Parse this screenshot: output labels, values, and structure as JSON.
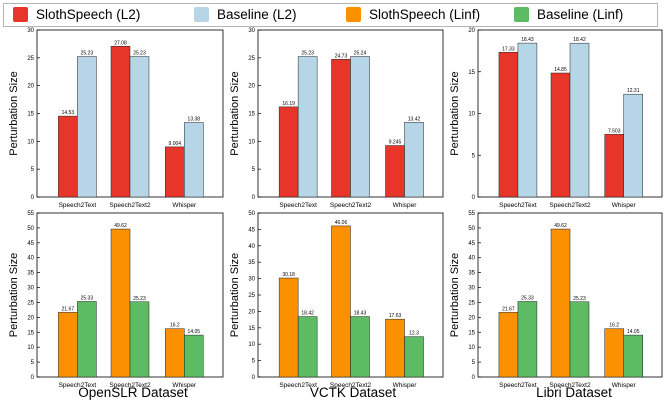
{
  "legend": [
    {
      "label": "SlothSpeech (L2)",
      "color": "#e8352a"
    },
    {
      "label": "Baseline (L2)",
      "color": "#b6d6e8"
    },
    {
      "label": "SlothSpeech (Linf)",
      "color": "#fb9100"
    },
    {
      "label": "Baseline (Linf)",
      "color": "#5dbb63"
    }
  ],
  "datasets": [
    "OpenSLR Dataset",
    "VCTK Dataset",
    "Libri Dataset"
  ],
  "chart_data": [
    {
      "type": "bar",
      "dataset": "OpenSLR Dataset",
      "norm": "L2",
      "ylabel": "Perturbation Size",
      "categories": [
        "Speech2Text",
        "Speech2Text2",
        "Whisper"
      ],
      "ylim": [
        0,
        30
      ],
      "yticks": [
        "0",
        "5",
        "10",
        "15",
        "20",
        "25",
        "30"
      ],
      "series": [
        {
          "name": "SlothSpeech (L2)",
          "values": [
            14.53,
            27.08,
            9.004
          ],
          "labels": [
            "14.53",
            "27.08",
            "9.004"
          ],
          "color": "#e8352a"
        },
        {
          "name": "Baseline (L2)",
          "values": [
            25.23,
            25.23,
            13.38
          ],
          "labels": [
            "25.23",
            "25.23",
            "13.38"
          ],
          "color": "#b6d6e8"
        }
      ]
    },
    {
      "type": "bar",
      "dataset": "VCTK Dataset",
      "norm": "L2",
      "ylabel": "Perturbation Size",
      "categories": [
        "Speech2Text",
        "Speech2Text2",
        "Whisper"
      ],
      "ylim": [
        0,
        30
      ],
      "yticks": [
        "0",
        "5",
        "10",
        "15",
        "20",
        "25",
        "30"
      ],
      "series": [
        {
          "name": "SlothSpeech (L2)",
          "values": [
            16.19,
            24.73,
            9.245
          ],
          "labels": [
            "16.19",
            "24.73",
            "9.245"
          ],
          "color": "#e8352a"
        },
        {
          "name": "Baseline (L2)",
          "values": [
            25.23,
            25.24,
            13.42
          ],
          "labels": [
            "25.23",
            "25.24",
            "13.42"
          ],
          "color": "#b6d6e8"
        }
      ]
    },
    {
      "type": "bar",
      "dataset": "Libri Dataset",
      "norm": "L2",
      "ylabel": "Perturbation Size",
      "categories": [
        "Speech2Text",
        "Speech2Text2",
        "Whisper"
      ],
      "ylim": [
        0,
        20
      ],
      "yticks": [
        "0",
        "5",
        "10",
        "15",
        "20"
      ],
      "series": [
        {
          "name": "SlothSpeech (L2)",
          "values": [
            17.33,
            14.85,
            7.503
          ],
          "labels": [
            "17.33",
            "14.85",
            "7.503"
          ],
          "color": "#e8352a"
        },
        {
          "name": "Baseline (L2)",
          "values": [
            18.43,
            18.42,
            12.31
          ],
          "labels": [
            "18.43",
            "18.42",
            "12.31"
          ],
          "color": "#b6d6e8"
        }
      ]
    },
    {
      "type": "bar",
      "dataset": "OpenSLR Dataset",
      "norm": "Linf",
      "ylabel": "Perturbation Size",
      "categories": [
        "Speech2Text",
        "Speech2Text2",
        "Whisper"
      ],
      "ylim": [
        0,
        55
      ],
      "yticks": [
        "0",
        "5",
        "10",
        "15",
        "20",
        "25",
        "30",
        "35",
        "40",
        "45",
        "50",
        "55"
      ],
      "series": [
        {
          "name": "SlothSpeech (Linf)",
          "values": [
            21.67,
            49.62,
            16.2
          ],
          "labels": [
            "21.67",
            "49.62",
            "16.2"
          ],
          "color": "#fb9100"
        },
        {
          "name": "Baseline (Linf)",
          "values": [
            25.33,
            25.23,
            14.05
          ],
          "labels": [
            "25.33",
            "25.23",
            "14.05"
          ],
          "color": "#5dbb63"
        }
      ]
    },
    {
      "type": "bar",
      "dataset": "VCTK Dataset",
      "norm": "Linf",
      "ylabel": "Perturbation Size",
      "categories": [
        "Speech2Text",
        "Speech2Text2",
        "Whisper"
      ],
      "ylim": [
        0,
        50
      ],
      "yticks": [
        "0",
        "5",
        "10",
        "15",
        "20",
        "25",
        "30",
        "35",
        "40",
        "45",
        "50"
      ],
      "series": [
        {
          "name": "SlothSpeech (Linf)",
          "values": [
            30.18,
            46.06,
            17.63
          ],
          "labels": [
            "30.18",
            "46.06",
            "17.63"
          ],
          "color": "#fb9100"
        },
        {
          "name": "Baseline (Linf)",
          "values": [
            18.42,
            18.43,
            12.3
          ],
          "labels": [
            "18.42",
            "18.43",
            "12.3"
          ],
          "color": "#5dbb63"
        }
      ]
    },
    {
      "type": "bar",
      "dataset": "Libri Dataset",
      "norm": "Linf",
      "ylabel": "Perturbation Size",
      "categories": [
        "Speech2Text",
        "Speech2Text2",
        "Whisper"
      ],
      "ylim": [
        0,
        55
      ],
      "yticks": [
        "0",
        "5",
        "10",
        "15",
        "20",
        "25",
        "30",
        "35",
        "40",
        "45",
        "50",
        "55"
      ],
      "series": [
        {
          "name": "SlothSpeech (Linf)",
          "values": [
            21.67,
            49.62,
            16.2
          ],
          "labels": [
            "21.67",
            "49.62",
            "16.2"
          ],
          "color": "#fb9100"
        },
        {
          "name": "Baseline (Linf)",
          "values": [
            25.33,
            25.23,
            14.05
          ],
          "labels": [
            "25.33",
            "25.23",
            "14.05"
          ],
          "color": "#5dbb63"
        }
      ]
    }
  ]
}
